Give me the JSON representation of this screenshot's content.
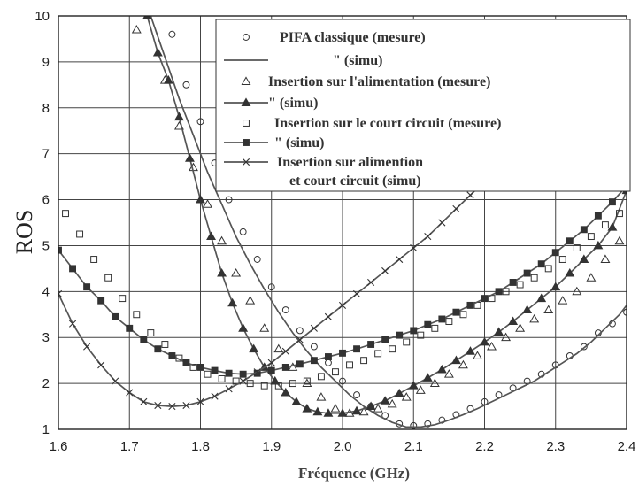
{
  "chart_data": {
    "type": "line",
    "xlabel": "Fréquence (GHz)",
    "ylabel": "ROS",
    "xlim": [
      1.6,
      2.4
    ],
    "ylim": [
      1,
      10
    ],
    "xticks": [
      "1.6",
      "1.7",
      "1.8",
      "1.9",
      "2.0",
      "2.1",
      "2.2",
      "2.3",
      "2.4"
    ],
    "yticks": [
      "1",
      "2",
      "3",
      "4",
      "5",
      "6",
      "7",
      "8",
      "9",
      "10"
    ],
    "grid": true,
    "legend_position": "top-right",
    "legend": [
      {
        "marker": "circle",
        "line": false,
        "text": "PIFA classique (mesure)"
      },
      {
        "marker": "none",
        "line": true,
        "text": "\"                        (simu)"
      },
      {
        "marker": "triangle-open",
        "line": false,
        "text": "Insertion sur l'alimentation (mesure)"
      },
      {
        "marker": "triangle-filled",
        "line": true,
        "text": "\"                          (simu)"
      },
      {
        "marker": "square-open",
        "line": false,
        "text": "Insertion sur le court circuit (mesure)"
      },
      {
        "marker": "square-filled",
        "line": true,
        "text": "\"                          (simu)"
      },
      {
        "marker": "x",
        "line": true,
        "text": "Insertion sur alimention"
      },
      {
        "marker": "none",
        "line": false,
        "text": "et court circuit (simu)"
      }
    ],
    "series": [
      {
        "marker": "circle",
        "line": false,
        "x": [
          1.76,
          1.78,
          1.8,
          1.82,
          1.84,
          1.86,
          1.88,
          1.9,
          1.92,
          1.94,
          1.96,
          1.98,
          2.0,
          2.02,
          2.04,
          2.06,
          2.08,
          2.1,
          2.12,
          2.14,
          2.16,
          2.18,
          2.2,
          2.22,
          2.24,
          2.26,
          2.28,
          2.3,
          2.32,
          2.34,
          2.36,
          2.38,
          2.4
        ],
        "y": [
          9.6,
          8.5,
          7.7,
          6.8,
          6.0,
          5.3,
          4.7,
          4.1,
          3.6,
          3.15,
          2.8,
          2.45,
          2.05,
          1.75,
          1.5,
          1.3,
          1.12,
          1.08,
          1.12,
          1.2,
          1.32,
          1.45,
          1.6,
          1.75,
          1.9,
          2.05,
          2.2,
          2.4,
          2.6,
          2.8,
          3.1,
          3.3,
          3.55
        ]
      },
      {
        "marker": "none",
        "line": true,
        "x": [
          1.73,
          1.75,
          1.77,
          1.79,
          1.81,
          1.83,
          1.85,
          1.87,
          1.89,
          1.91,
          1.93,
          1.95,
          1.97,
          1.99,
          2.01,
          2.03,
          2.05,
          2.07,
          2.09,
          2.11,
          2.13,
          2.15,
          2.17,
          2.19,
          2.21,
          2.23,
          2.25,
          2.27,
          2.29,
          2.31,
          2.33,
          2.35,
          2.37,
          2.39,
          2.4
        ],
        "y": [
          10.0,
          9.1,
          8.2,
          7.4,
          6.6,
          5.9,
          5.2,
          4.6,
          4.05,
          3.55,
          3.1,
          2.7,
          2.35,
          2.05,
          1.75,
          1.5,
          1.3,
          1.15,
          1.05,
          1.05,
          1.1,
          1.2,
          1.32,
          1.45,
          1.6,
          1.75,
          1.9,
          2.05,
          2.25,
          2.45,
          2.65,
          2.9,
          3.2,
          3.5,
          3.7
        ]
      },
      {
        "marker": "triangle-open",
        "line": false,
        "x": [
          1.71,
          1.75,
          1.77,
          1.79,
          1.81,
          1.83,
          1.85,
          1.87,
          1.89,
          1.91,
          1.93,
          1.95,
          1.97,
          1.99,
          2.01,
          2.03,
          2.05,
          2.07,
          2.09,
          2.11,
          2.13,
          2.15,
          2.17,
          2.19,
          2.21,
          2.23,
          2.25,
          2.27,
          2.29,
          2.31,
          2.33,
          2.35,
          2.37,
          2.39
        ],
        "y": [
          9.7,
          8.6,
          7.6,
          6.7,
          5.9,
          5.1,
          4.4,
          3.8,
          3.2,
          2.75,
          2.35,
          2.0,
          1.7,
          1.45,
          1.35,
          1.38,
          1.45,
          1.55,
          1.7,
          1.85,
          2.0,
          2.2,
          2.4,
          2.6,
          2.8,
          3.0,
          3.2,
          3.4,
          3.6,
          3.8,
          4.0,
          4.3,
          4.7,
          5.1
        ]
      },
      {
        "marker": "triangle-filled",
        "line": true,
        "x": [
          1.725,
          1.74,
          1.755,
          1.77,
          1.785,
          1.8,
          1.815,
          1.83,
          1.845,
          1.86,
          1.875,
          1.89,
          1.905,
          1.92,
          1.935,
          1.95,
          1.965,
          1.98,
          2.0,
          2.02,
          2.04,
          2.06,
          2.08,
          2.1,
          2.12,
          2.14,
          2.16,
          2.18,
          2.2,
          2.22,
          2.24,
          2.26,
          2.28,
          2.3,
          2.32,
          2.34,
          2.36,
          2.38,
          2.4
        ],
        "y": [
          10.0,
          9.2,
          8.6,
          7.8,
          6.9,
          6.0,
          5.2,
          4.4,
          3.75,
          3.2,
          2.75,
          2.35,
          2.05,
          1.8,
          1.6,
          1.45,
          1.38,
          1.35,
          1.35,
          1.4,
          1.5,
          1.62,
          1.78,
          1.95,
          2.12,
          2.3,
          2.5,
          2.7,
          2.9,
          3.12,
          3.35,
          3.6,
          3.85,
          4.1,
          4.4,
          4.7,
          5.0,
          5.4,
          6.2
        ]
      },
      {
        "marker": "square-open",
        "line": false,
        "x": [
          1.61,
          1.63,
          1.65,
          1.67,
          1.69,
          1.71,
          1.73,
          1.75,
          1.77,
          1.79,
          1.81,
          1.83,
          1.85,
          1.87,
          1.89,
          1.91,
          1.93,
          1.95,
          1.97,
          1.99,
          2.01,
          2.03,
          2.05,
          2.07,
          2.09,
          2.11,
          2.13,
          2.15,
          2.17,
          2.19,
          2.21,
          2.23,
          2.25,
          2.27,
          2.29,
          2.31,
          2.33,
          2.35,
          2.37,
          2.39
        ],
        "y": [
          5.7,
          5.25,
          4.7,
          4.3,
          3.85,
          3.5,
          3.1,
          2.85,
          2.55,
          2.35,
          2.2,
          2.1,
          2.05,
          2.0,
          1.95,
          1.95,
          2.0,
          2.05,
          2.15,
          2.25,
          2.4,
          2.5,
          2.65,
          2.75,
          2.9,
          3.05,
          3.2,
          3.35,
          3.5,
          3.7,
          3.85,
          4.0,
          4.15,
          4.3,
          4.5,
          4.7,
          4.95,
          5.2,
          5.45,
          5.7
        ]
      },
      {
        "marker": "square-filled",
        "line": true,
        "x": [
          1.6,
          1.62,
          1.64,
          1.66,
          1.68,
          1.7,
          1.72,
          1.74,
          1.76,
          1.78,
          1.8,
          1.82,
          1.84,
          1.86,
          1.88,
          1.9,
          1.92,
          1.94,
          1.96,
          1.98,
          2.0,
          2.02,
          2.04,
          2.06,
          2.08,
          2.1,
          2.12,
          2.14,
          2.16,
          2.18,
          2.2,
          2.22,
          2.24,
          2.26,
          2.28,
          2.3,
          2.32,
          2.34,
          2.36,
          2.38,
          2.4
        ],
        "y": [
          4.9,
          4.5,
          4.1,
          3.8,
          3.45,
          3.2,
          2.95,
          2.75,
          2.6,
          2.45,
          2.35,
          2.28,
          2.22,
          2.2,
          2.22,
          2.28,
          2.35,
          2.42,
          2.5,
          2.58,
          2.66,
          2.75,
          2.85,
          2.95,
          3.05,
          3.15,
          3.28,
          3.4,
          3.55,
          3.7,
          3.85,
          4.0,
          4.2,
          4.4,
          4.6,
          4.85,
          5.1,
          5.35,
          5.65,
          5.95,
          6.3
        ]
      },
      {
        "marker": "x",
        "line": true,
        "x": [
          1.6,
          1.62,
          1.64,
          1.66,
          1.68,
          1.7,
          1.72,
          1.74,
          1.76,
          1.78,
          1.8,
          1.82,
          1.84,
          1.86,
          1.88,
          1.9,
          1.92,
          1.94,
          1.96,
          1.98,
          2.0,
          2.02,
          2.04,
          2.06,
          2.08,
          2.1,
          2.12,
          2.14,
          2.16,
          2.18,
          2.2,
          2.22,
          2.24,
          2.255
        ],
        "y": [
          3.95,
          3.3,
          2.8,
          2.4,
          2.05,
          1.8,
          1.6,
          1.52,
          1.5,
          1.52,
          1.6,
          1.72,
          1.88,
          2.05,
          2.25,
          2.45,
          2.7,
          2.95,
          3.2,
          3.45,
          3.7,
          3.95,
          4.2,
          4.45,
          4.7,
          4.95,
          5.2,
          5.5,
          5.8,
          6.1,
          6.4,
          6.7,
          7.0,
          7.2
        ]
      }
    ]
  }
}
